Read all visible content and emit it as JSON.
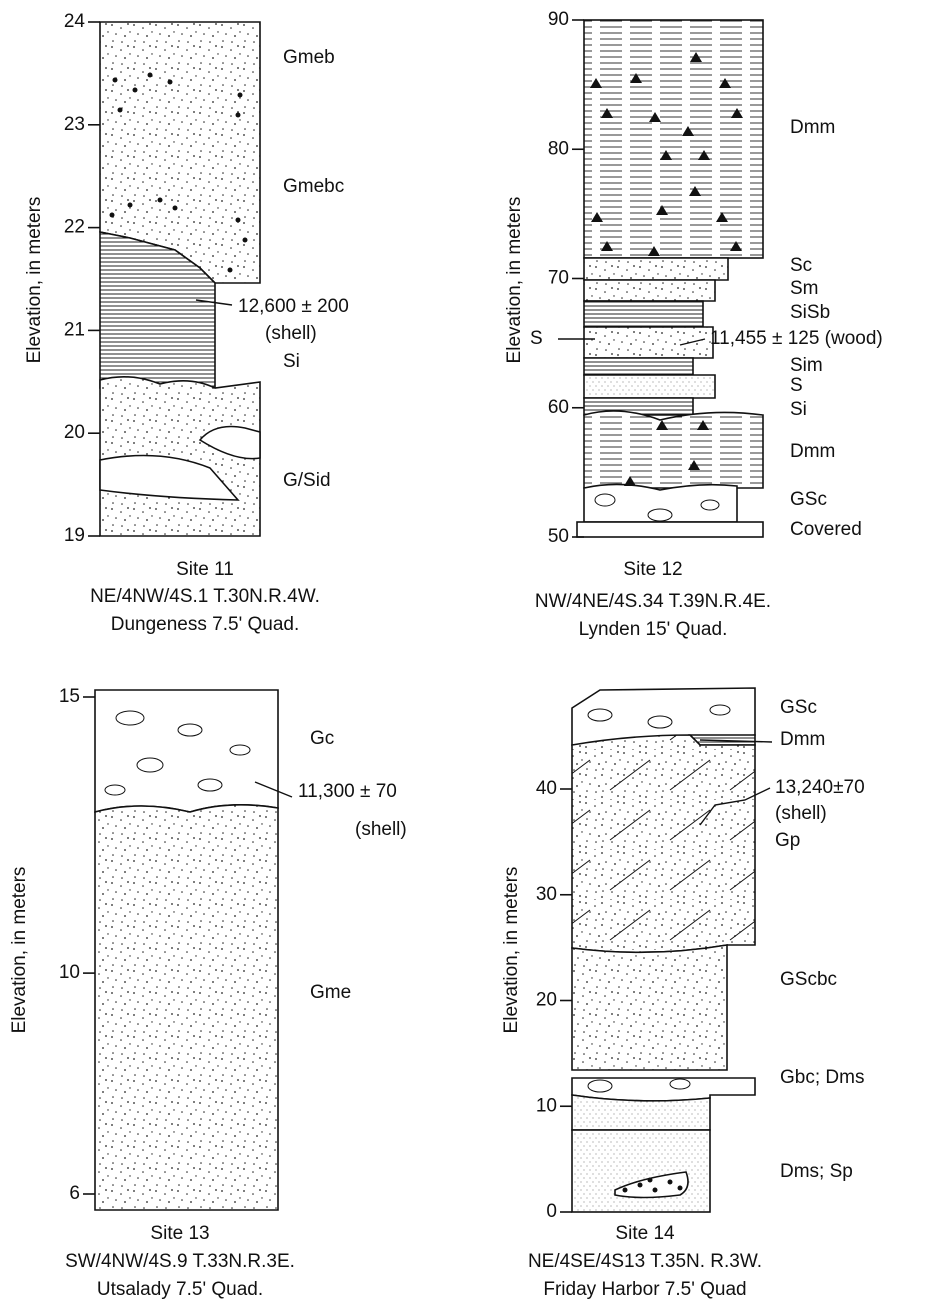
{
  "panels": [
    {
      "ylabel": "Elevation, in meters",
      "ticks": [
        24,
        23,
        22,
        21,
        20,
        19
      ],
      "units": [
        "Gmeb",
        "Gmebc",
        "Si",
        "G/Sid"
      ],
      "date": [
        "12,600 ± 200",
        "(shell)"
      ],
      "site": "Site 11",
      "location": "NE/4NW/4S.1 T.30N.R.4W.",
      "quad": "Dungeness 7.5' Quad."
    },
    {
      "ylabel": "Elevation, in meters",
      "ticks": [
        90,
        80,
        70,
        60,
        50
      ],
      "units": [
        "Dmm",
        "Sc",
        "Sm",
        "SiSb",
        "S",
        "Sim",
        "S",
        "Si",
        "Dmm",
        "GSc",
        "Covered"
      ],
      "date": [
        "11,455 ± 125 (wood)"
      ],
      "site": "Site 12",
      "location": "NW/4NE/4S.34 T.39N.R.4E.",
      "quad": "Lynden 15' Quad."
    },
    {
      "ylabel": "Elevation, in meters",
      "ticks": [
        15,
        10,
        6
      ],
      "units": [
        "Gc",
        "Gme"
      ],
      "date": [
        "11,300 ± 70",
        "(shell)"
      ],
      "site": "Site 13",
      "location": "SW/4NW/4S.9 T.33N.R.3E.",
      "quad": "Utsalady 7.5' Quad."
    },
    {
      "ylabel": "Elevation, in meters",
      "ticks": [
        40,
        30,
        20,
        10,
        0
      ],
      "units": [
        "GSc",
        "Dmm",
        "Gp",
        "GScbc",
        "Gbc; Dms",
        "Dms; Sp"
      ],
      "date": [
        "13,240±70",
        "(shell)"
      ],
      "site": "Site 14",
      "location": "NE/4SE/4S13 T.35N. R.3W.",
      "quad": "Friday Harbor 7.5' Quad"
    }
  ]
}
